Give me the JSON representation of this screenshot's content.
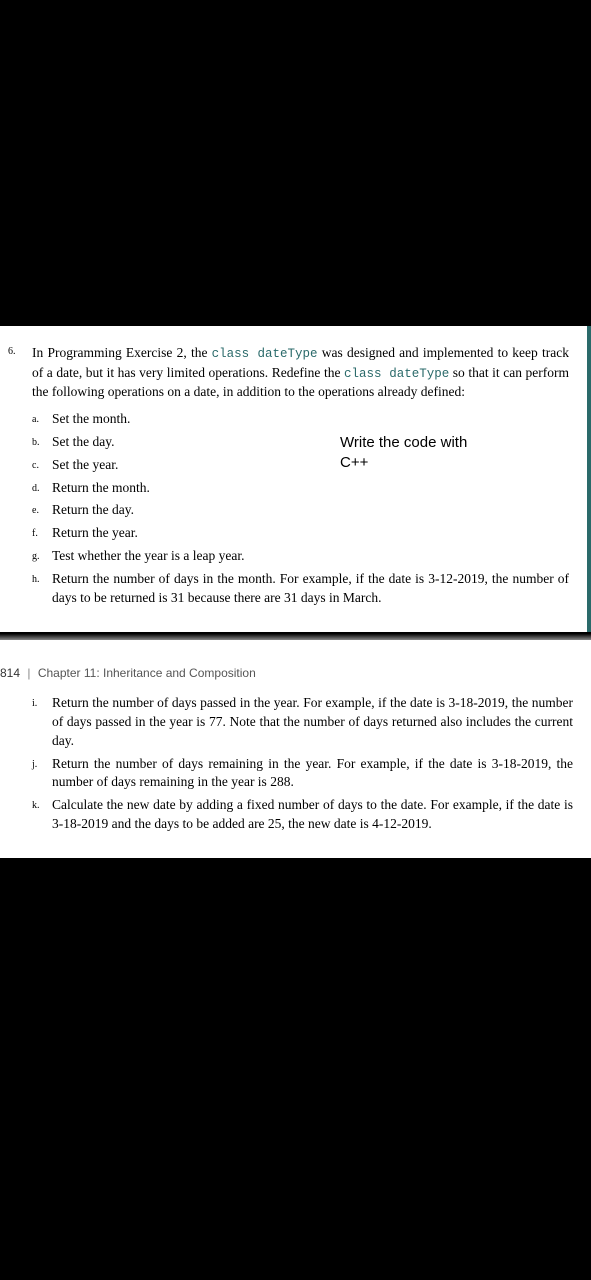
{
  "colors": {
    "page_bg": "#ffffff",
    "outer_bg": "#000000",
    "code_color": "#2a6a6a",
    "border_accent": "#2a6a6a",
    "chapter_text": "#555555"
  },
  "question": {
    "number": "6.",
    "intro_parts": [
      "In Programming Exercise 2, the ",
      "class dateType",
      " was designed and implemented to keep track of a date, but it has very limited operations. Redefine the ",
      "class dateType",
      " so that it can perform the following operations on a date, in addition to the operations already defined:"
    ],
    "items_top": [
      {
        "m": "a.",
        "t": "Set the month."
      },
      {
        "m": "b.",
        "t": "Set the day."
      },
      {
        "m": "c.",
        "t": "Set the year."
      },
      {
        "m": "d.",
        "t": "Return the month."
      },
      {
        "m": "e.",
        "t": "Return the day."
      },
      {
        "m": "f.",
        "t": "Return the year."
      },
      {
        "m": "g.",
        "t": "Test whether the year is a leap year."
      },
      {
        "m": "h.",
        "t": "Return the number of days in the month. For example, if the date is 3-12-2019, the number of days to be returned is 31 because there are 31 days in March."
      }
    ],
    "items_bottom": [
      {
        "m": "i.",
        "t": "Return the number of days passed in the year. For example, if the date is 3-18-2019, the number of days passed in the year is 77. Note that the number of days returned also includes the current day."
      },
      {
        "m": "j.",
        "t": "Return the number of days remaining in the year. For example, if the date is 3-18-2019, the number of days remaining in the year is 288."
      },
      {
        "m": "k.",
        "t": "Calculate the new date by adding a fixed number of days to the date. For example, if the date is 3-18-2019 and the days to be added are 25, the new date is 4-12-2019."
      }
    ]
  },
  "annotation": {
    "line1": "Write the code with",
    "line2": "C++"
  },
  "chapter": {
    "page_num": "814",
    "separator": "|",
    "title": "Chapter 11: Inheritance and Composition"
  }
}
